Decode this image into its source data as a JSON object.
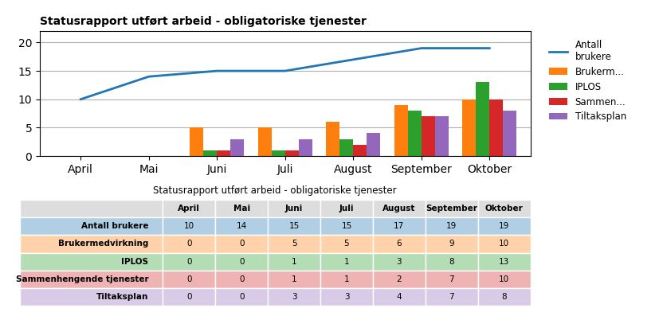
{
  "chart_data": [
    {
      "type": "bar",
      "title": "Statusrapport utført arbeid - obligatoriske tjenester",
      "categories": [
        "April",
        "Mai",
        "Juni",
        "Juli",
        "August",
        "September",
        "Oktober"
      ],
      "series": [
        {
          "name": "Antall\nbrukere",
          "type": "line",
          "values": [
            10,
            14,
            15,
            15,
            17,
            19,
            19
          ]
        },
        {
          "name": "Brukerm...",
          "type": "bar",
          "values": [
            0,
            0,
            5,
            5,
            6,
            9,
            10
          ]
        },
        {
          "name": "IPLOS",
          "type": "bar",
          "values": [
            0,
            0,
            1,
            1,
            3,
            8,
            13
          ]
        },
        {
          "name": "Sammen...",
          "type": "bar",
          "values": [
            0,
            0,
            1,
            1,
            2,
            7,
            10
          ]
        },
        {
          "name": "Tiltaksplan",
          "type": "bar",
          "values": [
            0,
            0,
            3,
            3,
            4,
            7,
            8
          ]
        }
      ],
      "ylim": [
        0,
        22
      ],
      "yticks": [
        0,
        5,
        10,
        15,
        20
      ],
      "grid": true,
      "legend": "upper left"
    },
    {
      "type": "table",
      "title": "Statusrapport utført arbeid - obligatoriske tjenester",
      "categories": [
        "April",
        "Mai",
        "Juni",
        "Juli",
        "August",
        "September",
        "Oktober"
      ],
      "series": [
        {
          "name": "Antall brukere",
          "values": [
            10,
            14,
            15,
            15,
            17,
            19,
            19
          ]
        },
        {
          "name": "Brukermedvirkning",
          "values": [
            0,
            0,
            5,
            5,
            6,
            9,
            10
          ]
        },
        {
          "name": "IPLOS",
          "values": [
            0,
            0,
            1,
            1,
            3,
            8,
            13
          ]
        },
        {
          "name": "Sammenhengende tjenester",
          "values": [
            0,
            0,
            1,
            1,
            2,
            7,
            10
          ]
        },
        {
          "name": "Tiltaksplan",
          "values": [
            0,
            0,
            3,
            3,
            4,
            7,
            8
          ]
        }
      ]
    }
  ]
}
